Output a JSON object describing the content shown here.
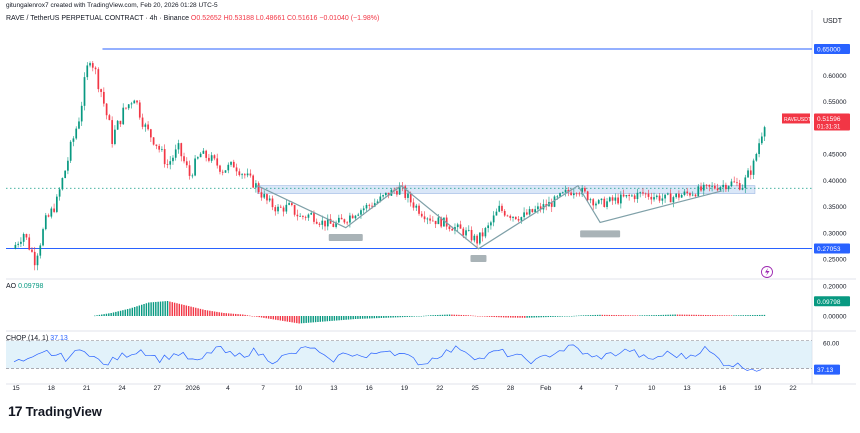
{
  "header": {
    "credit": "gitungalenrox7 created with TradingView.com, Feb 20, 2026 01:28 UTC-5",
    "symbol": "RAVE / TetherUS PERPETUAL CONTRACT · 4h · Binance",
    "ohlc": "O0.52652 H0.53188 L0.48661 C0.51616 −0.01040 (−1.98%)",
    "currency": "USDT"
  },
  "brand": {
    "logo": "17",
    "name": "TradingView"
  },
  "colors": {
    "up": "#089981",
    "down": "#f23645",
    "level": "#2962ff",
    "zone": "#bbd3f2",
    "chop": "#2962ff",
    "chop_band": "#cfeaf7"
  },
  "icons": [
    "tradingview-logo-icon",
    "lightning-icon"
  ],
  "chart_data": [
    {
      "type": "line",
      "title": "",
      "series_kind": "candlestick",
      "x_ticks": [
        "15",
        "18",
        "21",
        "24",
        "27",
        "2026",
        "4",
        "7",
        "10",
        "13",
        "16",
        "19",
        "22",
        "25",
        "28",
        "Feb",
        "4",
        "7",
        "10",
        "13",
        "16",
        "19",
        "22"
      ],
      "y_ticks": [
        "0.60000",
        "0.55000",
        "0.50000",
        "0.45000",
        "0.40000",
        "0.35000",
        "0.30000",
        "0.25000"
      ],
      "ylim": [
        0.22,
        0.69
      ],
      "price_path": [
        [
          "Dec 14",
          0.27
        ],
        [
          "Dec 15",
          0.3
        ],
        [
          "Dec 16",
          0.25
        ],
        [
          "Dec 17",
          0.32
        ],
        [
          "Dec 18",
          0.36
        ],
        [
          "Dec 19",
          0.44
        ],
        [
          "Dec 20",
          0.52
        ],
        [
          "Dec 21",
          0.64
        ],
        [
          "Dec 22",
          0.57
        ],
        [
          "Dec 23",
          0.48
        ],
        [
          "Dec 24",
          0.53
        ],
        [
          "Dec 25",
          0.56
        ],
        [
          "Dec 26",
          0.5
        ],
        [
          "Dec 27",
          0.47
        ],
        [
          "Dec 28",
          0.43
        ],
        [
          "Dec 29",
          0.46
        ],
        [
          "Dec 30",
          0.41
        ],
        [
          "Dec 31",
          0.45
        ],
        [
          "Jan 1",
          0.44
        ],
        [
          "Jan 2",
          0.42
        ],
        [
          "Jan 3",
          0.43
        ],
        [
          "Jan 4",
          0.41
        ],
        [
          "Jan 5",
          0.39
        ],
        [
          "Jan 6",
          0.36
        ],
        [
          "Jan 7",
          0.345
        ],
        [
          "Jan 8",
          0.35
        ],
        [
          "Jan 9",
          0.33
        ],
        [
          "Jan 10",
          0.335
        ],
        [
          "Jan 11",
          0.32
        ],
        [
          "Jan 12",
          0.315
        ],
        [
          "Jan 13",
          0.325
        ],
        [
          "Jan 14",
          0.34
        ],
        [
          "Jan 15",
          0.35
        ],
        [
          "Jan 16",
          0.36
        ],
        [
          "Jan 17",
          0.375
        ],
        [
          "Jan 18",
          0.385
        ],
        [
          "Jan 19",
          0.36
        ],
        [
          "Jan 20",
          0.34
        ],
        [
          "Jan 21",
          0.325
        ],
        [
          "Jan 22",
          0.32
        ],
        [
          "Jan 23",
          0.31
        ],
        [
          "Jan 24",
          0.3
        ],
        [
          "Jan 25",
          0.285
        ],
        [
          "Jan 26",
          0.31
        ],
        [
          "Jan 27",
          0.345
        ],
        [
          "Jan 28",
          0.335
        ],
        [
          "Jan 29",
          0.33
        ],
        [
          "Jan 30",
          0.34
        ],
        [
          "Jan 31",
          0.35
        ],
        [
          "Feb 1",
          0.36
        ],
        [
          "Feb 2",
          0.375
        ],
        [
          "Feb 3",
          0.385
        ],
        [
          "Feb 4",
          0.37
        ],
        [
          "Feb 5",
          0.355
        ],
        [
          "Feb 6",
          0.36
        ],
        [
          "Feb 7",
          0.365
        ],
        [
          "Feb 8",
          0.37
        ],
        [
          "Feb 9",
          0.375
        ],
        [
          "Feb 10",
          0.37
        ],
        [
          "Feb 11",
          0.365
        ],
        [
          "Feb 12",
          0.37
        ],
        [
          "Feb 13",
          0.375
        ],
        [
          "Feb 14",
          0.38
        ],
        [
          "Feb 15",
          0.385
        ],
        [
          "Feb 16",
          0.39
        ],
        [
          "Feb 17",
          0.395
        ],
        [
          "Feb 18",
          0.39
        ],
        [
          "Feb 19",
          0.43
        ],
        [
          "Feb 20",
          0.516
        ]
      ],
      "levels": [
        {
          "price": 0.65,
          "label": "0.65000"
        },
        {
          "price": 0.27053,
          "label": "0.27053"
        },
        {
          "price": 0.385,
          "style": "dotted"
        }
      ],
      "zone": [
        0.375,
        0.39
      ],
      "last_price": {
        "symbol": "RAVEUSDT.P",
        "value": "0.51596",
        "countdown": "01:31:31"
      },
      "neckline_pattern": [
        [
          "Jan 5",
          0.39
        ],
        [
          "Jan 13",
          0.31
        ],
        [
          "Jan 18",
          0.39
        ],
        [
          "Jan 25",
          0.27
        ],
        [
          "Feb 3",
          0.39
        ],
        [
          "Feb 5",
          0.32
        ],
        [
          "Feb 16",
          0.38
        ]
      ]
    },
    {
      "type": "bar",
      "title": "AO",
      "value_label": "0.09798",
      "y_ticks": [
        "0.20000",
        "0.10000",
        "0.00000"
      ],
      "ylim": [
        -0.06,
        0.22
      ],
      "values_sampled": [
        0.02,
        0.05,
        0.09,
        0.1,
        0.07,
        0.04,
        0.02,
        0.01,
        -0.01,
        -0.03,
        -0.05,
        -0.04,
        -0.03,
        -0.02,
        -0.015,
        -0.01,
        -0.005,
        0.005,
        0.01,
        0.005,
        -0.005,
        -0.01,
        -0.012,
        -0.008,
        -0.004,
        0.004,
        0.008,
        0.006,
        0.004,
        0.006,
        0.01,
        0.008,
        0.006,
        0.004,
        0.006,
        0.008,
        0.006,
        0.01,
        0.05,
        0.098
      ]
    },
    {
      "type": "line",
      "title": "CHOP (14, 1)",
      "value_label": "37.13",
      "y_ticks": [
        "60.00"
      ],
      "ylim": [
        30,
        65
      ],
      "band": [
        38.2,
        61.8
      ],
      "values_sampled": [
        44,
        52,
        47,
        55,
        41,
        49,
        54,
        46,
        51,
        43,
        56,
        48,
        53,
        45,
        50,
        57,
        44,
        52,
        47,
        55,
        49,
        42,
        51,
        56,
        46,
        53,
        48,
        44,
        52,
        57,
        47,
        50,
        54,
        45,
        51,
        48,
        55,
        43,
        40,
        37.13
      ]
    }
  ]
}
